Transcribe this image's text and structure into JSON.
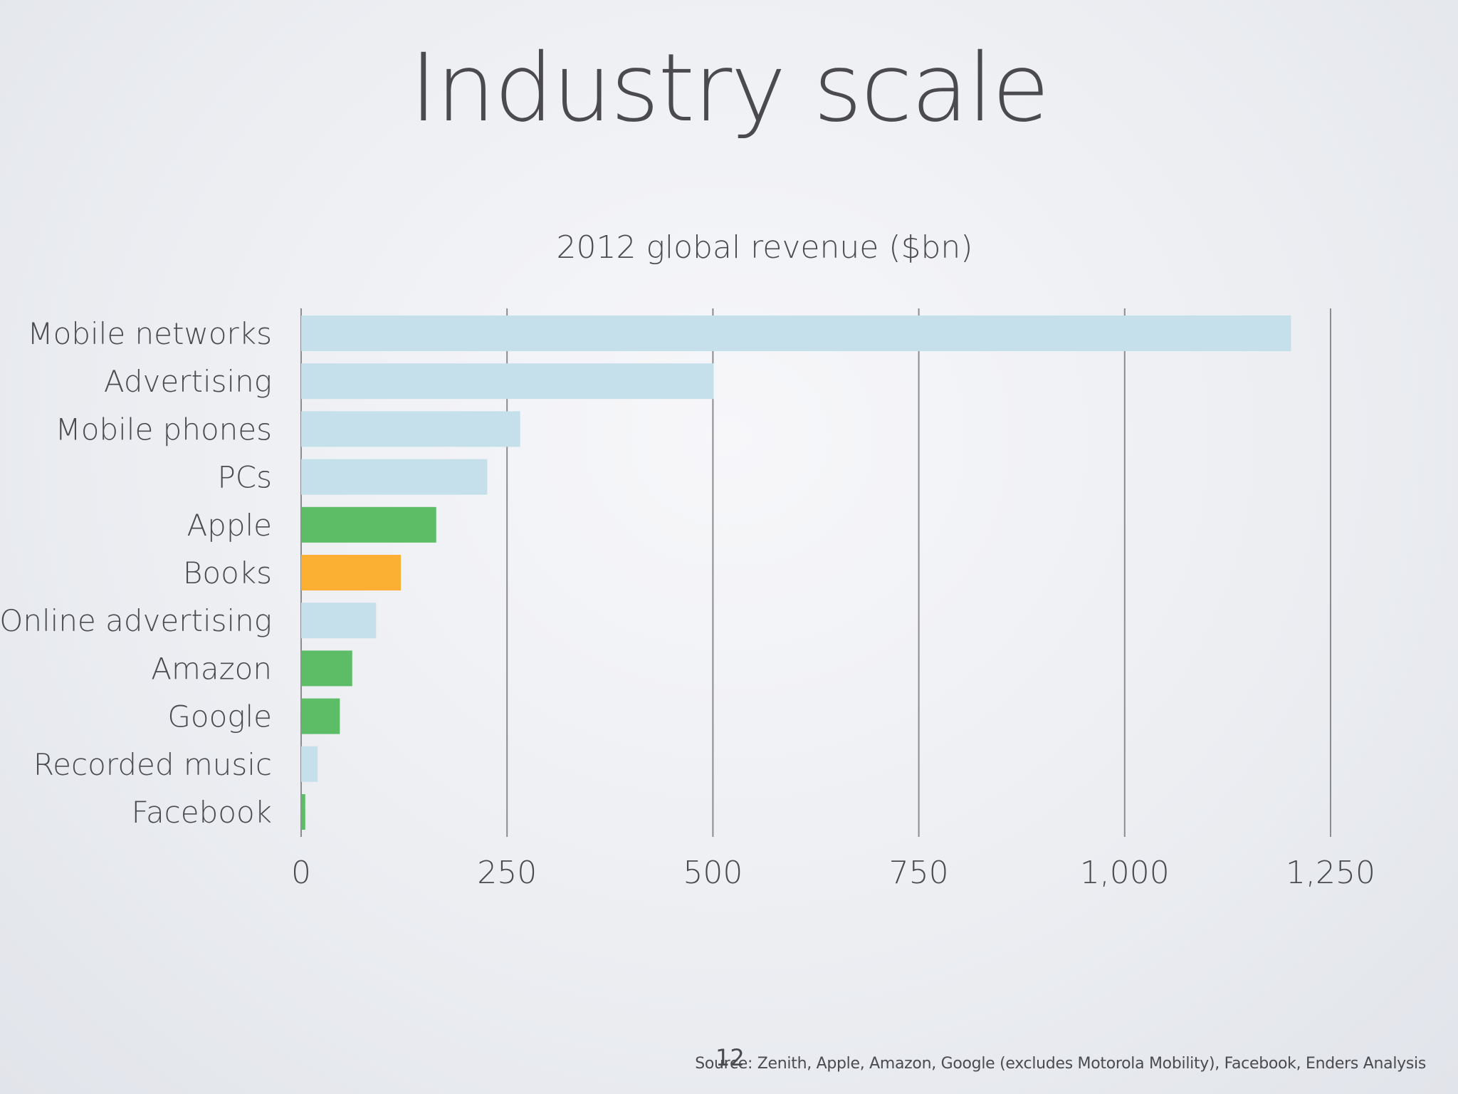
{
  "slide": {
    "title": "Industry scale",
    "page_number": "12",
    "source": "Source: Zenith, Apple, Amazon, Google (excludes Motorola Mobility), Facebook, Enders Analysis"
  },
  "colors": {
    "industry": "#c6e0eb",
    "company": "#5cbd66",
    "books": "#fbb034",
    "gridline": "#8c8c90",
    "text": "#4a4a4f"
  },
  "chart_data": {
    "type": "bar",
    "orientation": "horizontal",
    "title": "2012 global revenue ($bn)",
    "xlabel": "",
    "ylabel": "",
    "xlim": [
      0,
      1250
    ],
    "ticks": [
      0,
      250,
      500,
      750,
      1000,
      1250
    ],
    "tick_labels": [
      "0",
      "250",
      "500",
      "750",
      "1,000",
      "1,250"
    ],
    "grid": true,
    "categories": [
      "Mobile networks",
      "Advertising",
      "Mobile phones",
      "PCs",
      "Apple",
      "Books",
      "Online advertising",
      "Amazon",
      "Google",
      "Recorded music",
      "Facebook"
    ],
    "values": [
      1202,
      501,
      266,
      226,
      164,
      121,
      91,
      62,
      47,
      20,
      5
    ],
    "bar_colors": [
      "#c6e0eb",
      "#c6e0eb",
      "#c6e0eb",
      "#c6e0eb",
      "#5cbd66",
      "#fbb034",
      "#c6e0eb",
      "#5cbd66",
      "#5cbd66",
      "#c6e0eb",
      "#5cbd66"
    ]
  }
}
